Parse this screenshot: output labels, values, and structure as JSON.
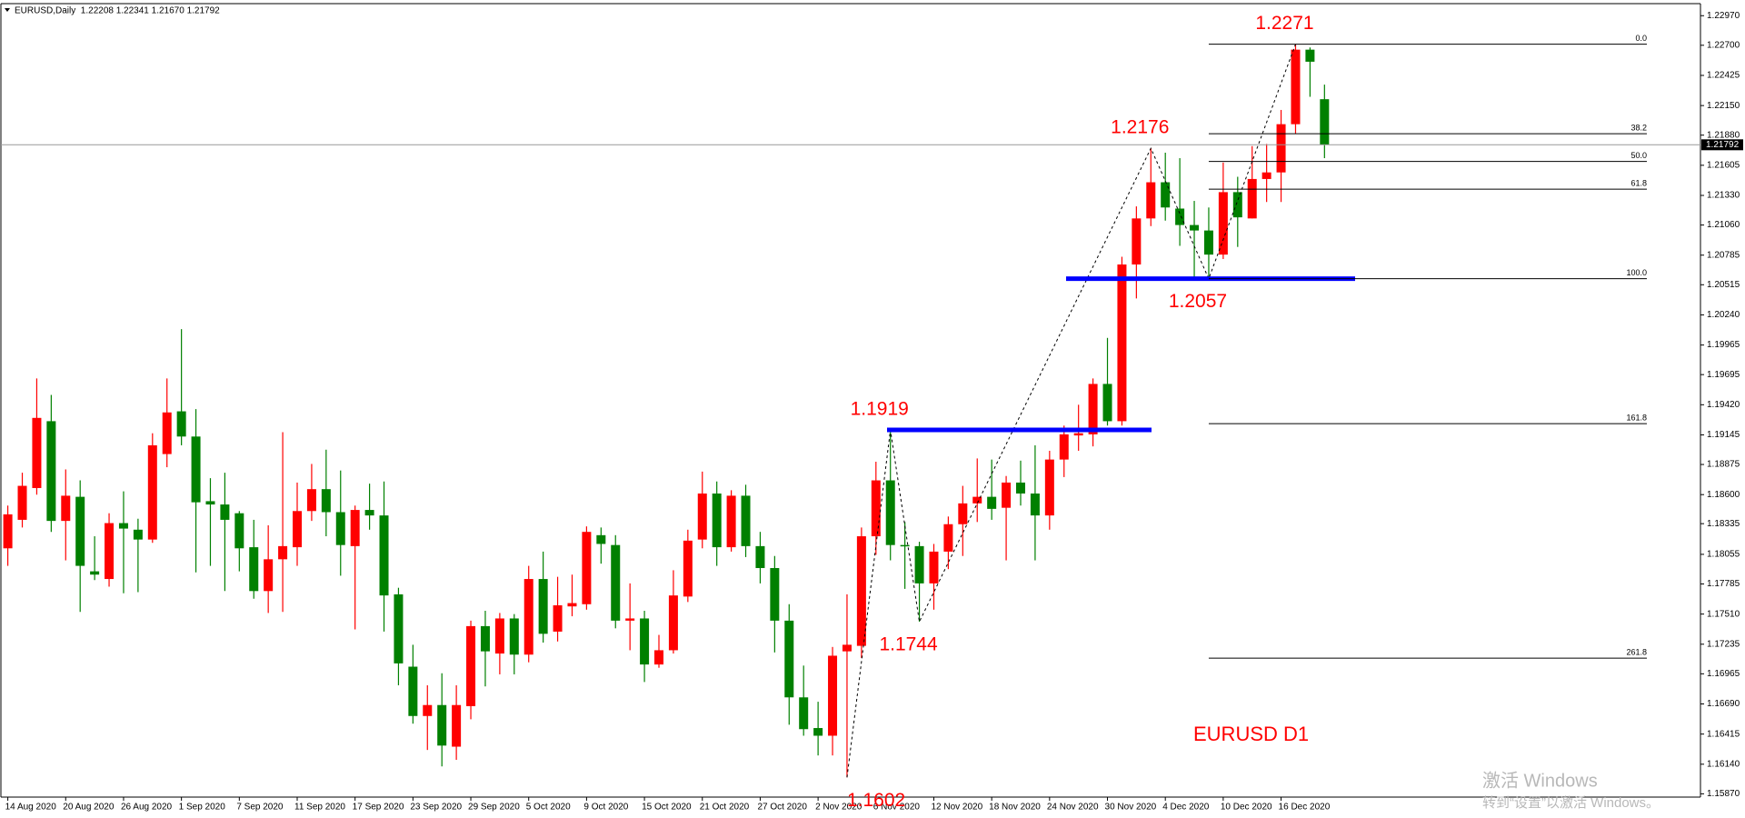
{
  "chart_data": {
    "type": "candlestick",
    "subtitle": "EURUSD,Daily  1.22208 1.22341 1.21670 1.21792",
    "label": "EURUSD D1",
    "up_color": "#ff0000",
    "down_color": "#008000",
    "categories": [
      "14 Aug 2020",
      null,
      null,
      null,
      "20 Aug 2020",
      null,
      null,
      null,
      "26 Aug 2020",
      null,
      null,
      null,
      "1 Sep 2020",
      null,
      null,
      null,
      "7 Sep 2020",
      null,
      null,
      null,
      "11 Sep 2020",
      null,
      null,
      null,
      "17 Sep 2020",
      null,
      null,
      null,
      "23 Sep 2020",
      null,
      null,
      null,
      "29 Sep 2020",
      null,
      null,
      null,
      "5 Oct 2020",
      null,
      null,
      null,
      "9 Oct 2020",
      null,
      null,
      null,
      "15 Oct 2020",
      null,
      null,
      null,
      "21 Oct 2020",
      null,
      null,
      null,
      "27 Oct 2020",
      null,
      null,
      null,
      "2 Nov 2020",
      null,
      null,
      null,
      "6 Nov 2020",
      null,
      null,
      null,
      "12 Nov 2020",
      null,
      null,
      null,
      "18 Nov 2020",
      null,
      null,
      null,
      "24 Nov 2020",
      null,
      null,
      null,
      "30 Nov 2020",
      null,
      null,
      null,
      "4 Dec 2020",
      null,
      null,
      null,
      "10 Dec 2020",
      null,
      null,
      null,
      "16 Dec 2020",
      null,
      null,
      null
    ],
    "open": [
      1.1811,
      1.1837,
      1.1866,
      1.1927,
      1.1836,
      1.1858,
      1.179,
      1.1783,
      1.1834,
      1.1828,
      1.1819,
      1.1897,
      1.1936,
      1.1913,
      1.1854,
      1.1851,
      1.1843,
      1.1812,
      1.1772,
      1.1801,
      1.1812,
      1.1845,
      1.1865,
      1.1844,
      1.1813,
      1.1846,
      1.1841,
      1.1769,
      1.1703,
      1.1658,
      1.1668,
      1.163,
      1.1667,
      1.174,
      1.1715,
      1.1747,
      1.1714,
      1.1783,
      1.1735,
      1.1758,
      1.176,
      1.1823,
      1.1814,
      1.1745,
      1.1747,
      1.1705,
      1.1718,
      1.1767,
      1.1819,
      1.1861,
      1.1812,
      1.1859,
      1.1813,
      1.1793,
      1.1745,
      1.1675,
      1.1647,
      1.164,
      1.1717,
      1.1722,
      1.1822,
      1.1873,
      1.1814,
      1.1813,
      1.1779,
      1.1808,
      1.1833,
      1.1852,
      1.1858,
      1.1848,
      1.1871,
      1.1861,
      1.1841,
      1.1892,
      1.1914,
      1.1915,
      1.1961,
      1.1927,
      1.207,
      1.2112,
      1.2145,
      1.2121,
      1.2106,
      1.2101,
      1.2079,
      1.2136,
      1.2112,
      1.2148,
      1.2154,
      1.2198,
      1.2266,
      1.22208
    ],
    "high": [
      1.185,
      1.188,
      1.1966,
      1.1951,
      1.1883,
      1.1873,
      1.1822,
      1.1843,
      1.1863,
      1.1838,
      1.1916,
      1.1966,
      1.2011,
      1.1938,
      1.1875,
      1.188,
      1.1845,
      1.1837,
      1.1832,
      1.1917,
      1.1871,
      1.1888,
      1.1901,
      1.1882,
      1.185,
      1.187,
      1.1872,
      1.1775,
      1.1723,
      1.1686,
      1.1697,
      1.1686,
      1.1745,
      1.1754,
      1.1752,
      1.1751,
      1.1795,
      1.1808,
      1.1785,
      1.1787,
      1.1831,
      1.183,
      1.1823,
      1.1779,
      1.1754,
      1.1732,
      1.1791,
      1.1828,
      1.1881,
      1.1872,
      1.1864,
      1.1869,
      1.1826,
      1.1804,
      1.176,
      1.1704,
      1.1671,
      1.1721,
      1.1769,
      1.183,
      1.189,
      1.1919,
      1.1835,
      1.1817,
      1.1815,
      1.184,
      1.1868,
      1.1893,
      1.1892,
      1.1877,
      1.1891,
      1.1905,
      1.19,
      1.1923,
      1.1942,
      1.1966,
      1.2003,
      1.2077,
      1.2123,
      1.2176,
      1.2172,
      1.2167,
      1.2128,
      1.2122,
      1.2163,
      1.215,
      1.2178,
      1.218,
      1.2211,
      1.2271,
      1.2268,
      1.22341
    ],
    "low": [
      1.1795,
      1.183,
      1.186,
      1.1826,
      1.18,
      1.1753,
      1.1782,
      1.1776,
      1.177,
      1.1771,
      1.1816,
      1.1885,
      1.1905,
      1.1789,
      1.1795,
      1.1772,
      1.179,
      1.1765,
      1.1752,
      1.1753,
      1.1795,
      1.1836,
      1.1822,
      1.1786,
      1.1737,
      1.1828,
      1.1735,
      1.1686,
      1.1651,
      1.1627,
      1.1612,
      1.1618,
      1.1655,
      1.1685,
      1.1696,
      1.1696,
      1.1707,
      1.1725,
      1.1726,
      1.1749,
      1.1755,
      1.1797,
      1.1738,
      1.1718,
      1.1689,
      1.1702,
      1.1715,
      1.1762,
      1.1811,
      1.1795,
      1.1808,
      1.1803,
      1.1779,
      1.1716,
      1.165,
      1.164,
      1.1622,
      1.1622,
      1.1602,
      1.1711,
      1.1805,
      1.18,
      1.1774,
      1.1744,
      1.1755,
      1.1792,
      1.1804,
      1.1835,
      1.1837,
      1.18,
      1.185,
      1.18,
      1.1828,
      1.1876,
      1.19,
      1.1904,
      1.1923,
      1.1923,
      1.2039,
      1.2105,
      1.211,
      1.2087,
      1.2058,
      1.2057,
      1.2075,
      1.2086,
      1.2112,
      1.2127,
      1.2127,
      1.2189,
      1.2223,
      1.2167
    ],
    "close": [
      1.1842,
      1.1868,
      1.193,
      1.1836,
      1.1859,
      1.1795,
      1.1787,
      1.1834,
      1.1829,
      1.1819,
      1.1905,
      1.1935,
      1.1913,
      1.1853,
      1.1851,
      1.1837,
      1.1811,
      1.1772,
      1.1801,
      1.1813,
      1.1845,
      1.1865,
      1.1844,
      1.1814,
      1.1846,
      1.1841,
      1.1768,
      1.1706,
      1.1658,
      1.1668,
      1.1631,
      1.1668,
      1.174,
      1.1717,
      1.1747,
      1.1714,
      1.1783,
      1.1733,
      1.1759,
      1.1761,
      1.1826,
      1.1815,
      1.1745,
      1.1747,
      1.1705,
      1.1718,
      1.1768,
      1.1818,
      1.1861,
      1.1812,
      1.1859,
      1.1813,
      1.1793,
      1.1745,
      1.1675,
      1.1646,
      1.164,
      1.1713,
      1.1723,
      1.1822,
      1.1873,
      1.1814,
      1.1813,
      1.1779,
      1.1808,
      1.1833,
      1.1852,
      1.1858,
      1.1847,
      1.1871,
      1.1861,
      1.1841,
      1.1892,
      1.1915,
      1.1916,
      1.1961,
      1.1927,
      1.207,
      1.2112,
      1.2145,
      1.2122,
      1.2106,
      1.2101,
      1.2079,
      1.2136,
      1.2113,
      1.2148,
      1.2154,
      1.2198,
      1.2266,
      1.2255,
      1.21792
    ],
    "ylim": [
      1.1584,
      1.2308
    ],
    "yticks": [
      {
        "value": 1.1587,
        "label": "1.15870"
      },
      {
        "value": 1.1614,
        "label": "1.16140"
      },
      1.16415,
      {
        "value": 1.1669,
        "label": "1.16690"
      },
      1.16965,
      1.17235,
      {
        "value": 1.1751,
        "label": "1.17510"
      },
      1.17785,
      1.18055,
      1.18335,
      {
        "value": 1.186,
        "label": "1.18600"
      },
      1.18875,
      1.19145,
      {
        "value": 1.1942,
        "label": "1.19420"
      },
      1.19695,
      1.19965,
      {
        "value": 1.2024,
        "label": "1.20240"
      },
      1.20515,
      1.20785,
      {
        "value": 1.2106,
        "label": "1.21060"
      },
      {
        "value": 1.2133,
        "label": "1.21330"
      },
      1.21605,
      {
        "value": 1.2188,
        "label": "1.21880"
      },
      {
        "value": 1.2215,
        "label": "1.22150"
      },
      1.22425,
      {
        "value": 1.227,
        "label": "1.22700"
      },
      {
        "value": 1.2297,
        "label": "1.22970"
      }
    ],
    "last_price": 1.21792,
    "annotations": [
      1.1602,
      1.1919,
      1.1744,
      1.2176,
      1.2057,
      1.2271
    ],
    "lines": [
      1.1919,
      1.2057
    ],
    "fibo_levels": [
      {
        "value": 0,
        "label": "0.0"
      },
      38.2,
      {
        "value": 50,
        "label": "50.0"
      },
      61.8,
      {
        "value": 100,
        "label": "100.0"
      },
      161.8,
      261.8
    ]
  },
  "watermark": [
    "激活 Windows",
    "转到“设置”以激活 Windows。"
  ]
}
